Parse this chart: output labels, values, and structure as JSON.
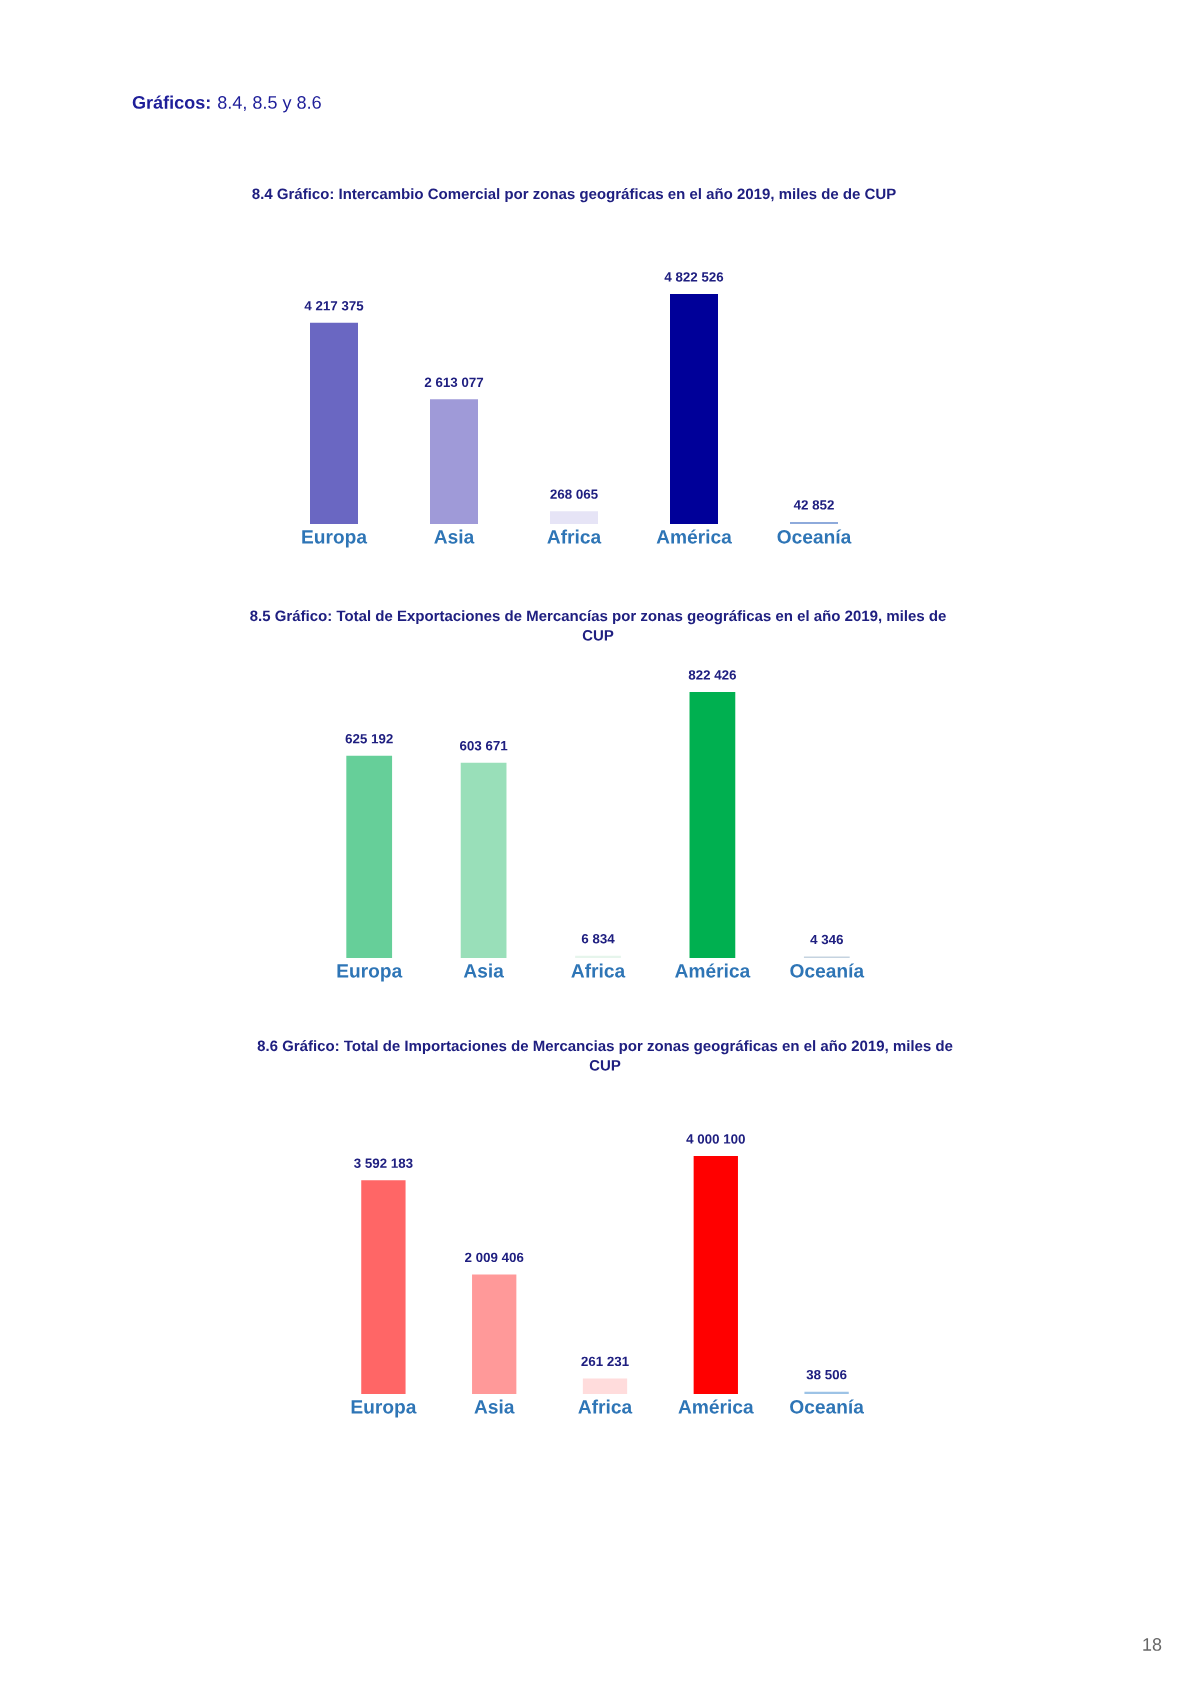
{
  "chart_data": [
    {
      "type": "bar",
      "title": "8.4 Gráfico: Intercambio Comercial por zonas geográficas en el año 2019, miles de de CUP",
      "categories": [
        "Europa",
        "Asia",
        "Africa",
        "América",
        "Oceanía"
      ],
      "values": [
        4217375,
        2613077,
        268065,
        4822526,
        42852
      ],
      "colors": [
        "#6a67c2",
        "#9f9ad8",
        "#e6e4f6",
        "#000099",
        "#8eaadb"
      ],
      "value_labels": [
        "4 217 375",
        "2 613 077",
        "268 065",
        "4 822 526",
        "42 852"
      ],
      "tick_labels": "x",
      "annotations": [
        "Gráficos:",
        "8.4, 8.5 y 8.6"
      ]
    },
    {
      "type": "bar",
      "title": "8.5 Gráfico: Total de Exportaciones de Mercancías por zonas geográficas en el año 2019, miles de CUP",
      "categories": [
        "Europa",
        "Asia",
        "Africa",
        "América",
        "Oceanía"
      ],
      "values": [
        625192,
        603671,
        6834,
        822426,
        4346
      ],
      "colors": [
        "#66cf99",
        "#99dfb9",
        "#e6f5ec",
        "#00b050",
        "#c5d3e0"
      ],
      "value_labels": [
        "625 192",
        "603 671",
        "6 834",
        "822 426",
        "4 346"
      ],
      "tick_labels": "x"
    },
    {
      "type": "bar",
      "title": "8.6 Gráfico: Total de Importaciones de Mercancias por zonas geográficas en el año 2019, miles de CUP",
      "categories": [
        "Europa",
        "Asia",
        "Africa",
        "América",
        "Oceanía"
      ],
      "values": [
        3592183,
        2009406,
        261231,
        4000100,
        38506
      ],
      "colors": [
        "#ff6666",
        "#ff9999",
        "#ffdcdc",
        "#ff0000",
        "#9dc3e6"
      ],
      "value_labels": [
        "3 592 183",
        "2 009 406",
        "261 231",
        "4 000 100",
        "38 506"
      ],
      "tick_labels": "x",
      "annotations": [
        "18"
      ]
    }
  ]
}
